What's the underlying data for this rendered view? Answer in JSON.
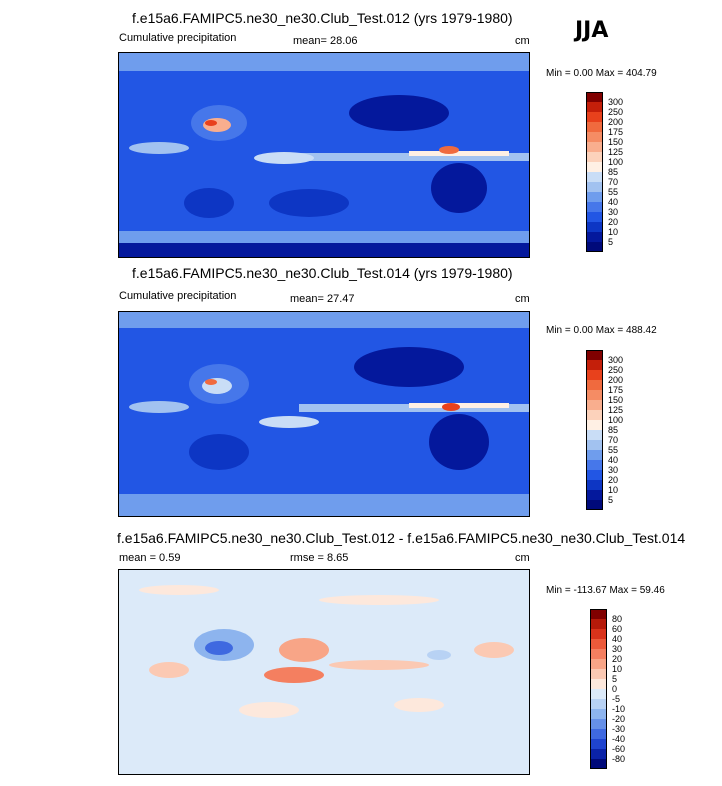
{
  "season": "JJA",
  "panels": [
    {
      "id": "p1",
      "title": "f.e15a6.FAMIPC5.ne30_ne30.Club_Test.012 (yrs 1979-1980)",
      "left_label": "Cumulative precipitation",
      "stat_text": "mean=  28.06",
      "units": "cm",
      "minmax": "Min =   0.00 Max = 404.79",
      "kind": "abs",
      "colorbar": {
        "levels": [
          "300",
          "250",
          "200",
          "175",
          "150",
          "125",
          "100",
          "85",
          "70",
          "55",
          "40",
          "30",
          "20",
          "10",
          "5"
        ],
        "colors": [
          "#800000",
          "#c41f0a",
          "#e8411c",
          "#f06a3e",
          "#f58c64",
          "#f9ae8e",
          "#fcd2bb",
          "#fff0e4",
          "#c9ddf6",
          "#a2c2f0",
          "#6f9ded",
          "#4677ea",
          "#2256e4",
          "#0d36c4",
          "#04189c",
          "#000a7a"
        ]
      }
    },
    {
      "id": "p2",
      "title": "f.e15a6.FAMIPC5.ne30_ne30.Club_Test.014 (yrs 1979-1980)",
      "left_label": "Cumulative precipitation",
      "stat_text": "mean=  27.47",
      "units": "cm",
      "minmax": "Min =   0.00 Max = 488.42",
      "kind": "abs",
      "colorbar": {
        "levels": [
          "300",
          "250",
          "200",
          "175",
          "150",
          "125",
          "100",
          "85",
          "70",
          "55",
          "40",
          "30",
          "20",
          "10",
          "5"
        ],
        "colors": [
          "#800000",
          "#c41f0a",
          "#e8411c",
          "#f06a3e",
          "#f58c64",
          "#f9ae8e",
          "#fcd2bb",
          "#fff0e4",
          "#c9ddf6",
          "#a2c2f0",
          "#6f9ded",
          "#4677ea",
          "#2256e4",
          "#0d36c4",
          "#04189c",
          "#000a7a"
        ]
      }
    },
    {
      "id": "p3",
      "title": "f.e15a6.FAMIPC5.ne30_ne30.Club_Test.012 - f.e15a6.FAMIPC5.ne30_ne30.Club_Test.014",
      "left_label": "mean =   0.59",
      "stat_text": "rmse =   8.65",
      "units": "cm",
      "minmax": "Min = -113.67 Max =  59.46",
      "kind": "diff",
      "colorbar": {
        "levels": [
          "80",
          "60",
          "40",
          "30",
          "20",
          "10",
          "5",
          "0",
          "-5",
          "-10",
          "-20",
          "-30",
          "-40",
          "-60",
          "-80"
        ],
        "colors": [
          "#800000",
          "#b51a0a",
          "#d9331b",
          "#ec5a3a",
          "#f47f60",
          "#f8a587",
          "#fbc9b3",
          "#fde8dc",
          "#dceaf9",
          "#b8d2f4",
          "#8db4ee",
          "#6690e8",
          "#3f69e0",
          "#1f44cf",
          "#0b23a8",
          "#000a7a"
        ]
      }
    }
  ]
}
